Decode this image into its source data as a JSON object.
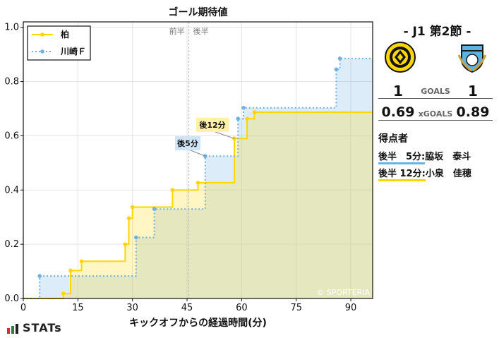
{
  "chart_data": {
    "type": "line",
    "title": "ゴール期待値",
    "xlabel": "キックオフからの経過時間(分)",
    "ylabel": "",
    "xlim": [
      0,
      96
    ],
    "ylim": [
      0,
      1.02
    ],
    "xticks": [
      0,
      15,
      30,
      45,
      60,
      75,
      90
    ],
    "yticks": [
      0.0,
      0.2,
      0.4,
      0.6,
      0.8,
      1.0
    ],
    "half_time_x": 45.5,
    "half_labels": {
      "first": "前半",
      "second": "後半"
    },
    "grid": true,
    "legend_position": "top-left",
    "watermark": "© SPORTERIA",
    "series": [
      {
        "name": "柏",
        "color": "#ffd600",
        "style": "solid",
        "points": [
          [
            11,
            0.018
          ],
          [
            13,
            0.103
          ],
          [
            16,
            0.137
          ],
          [
            28,
            0.2
          ],
          [
            29,
            0.296
          ],
          [
            30,
            0.337
          ],
          [
            41,
            0.4
          ],
          [
            48,
            0.427
          ],
          [
            58,
            0.59
          ],
          [
            61.5,
            0.663
          ],
          [
            63.5,
            0.687
          ]
        ]
      },
      {
        "name": "川崎Ｆ",
        "color": "#6fb1e0",
        "style": "dotted",
        "points": [
          [
            4.5,
            0.083
          ],
          [
            31,
            0.225
          ],
          [
            36,
            0.33
          ],
          [
            50,
            0.525
          ],
          [
            59,
            0.663
          ],
          [
            60.5,
            0.703
          ],
          [
            86,
            0.845
          ],
          [
            87,
            0.885
          ]
        ]
      }
    ],
    "annotations": [
      {
        "text": "後5分",
        "x": 50,
        "y": 0.525,
        "series": "川崎Ｆ",
        "color": "#cfe5f7"
      },
      {
        "text": "後12分",
        "x": 58,
        "y": 0.59,
        "series": "柏",
        "color": "#fff2a8"
      }
    ]
  },
  "match": {
    "title": "- J1 第2節 -",
    "goals_label": "GOALS",
    "xgoals_label": "xGOALS",
    "home": {
      "goals": "1",
      "xg": "0.69"
    },
    "away": {
      "goals": "1",
      "xg": "0.89"
    }
  },
  "scorers": {
    "heading": "得点者",
    "items": [
      {
        "time": "後半　5分:",
        "name": "脇坂　泰斗",
        "color": "#6fb1e0"
      },
      {
        "time": "後半 12分:",
        "name": "小泉　佳穂",
        "color": "#ffd600"
      }
    ]
  },
  "brand": {
    "name": "STATs"
  }
}
